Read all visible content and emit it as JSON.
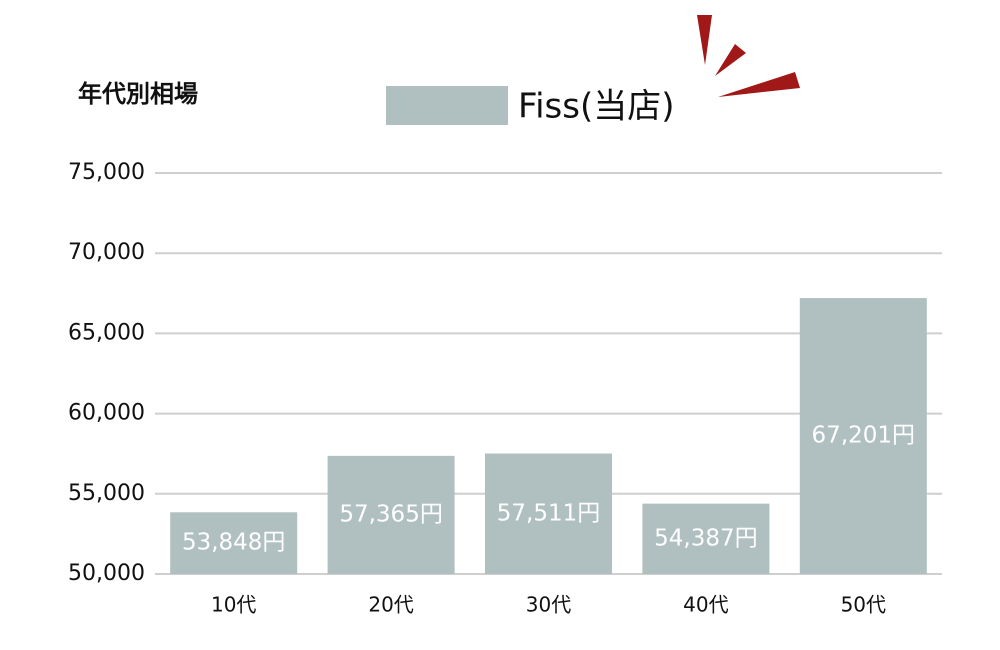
{
  "chart_data": {
    "type": "bar",
    "title": "年代別相場",
    "categories": [
      "10代",
      "20代",
      "30代",
      "40代",
      "50代"
    ],
    "series": [
      {
        "name": "Fiss(当店)",
        "color": "#b0bfc0",
        "values": [
          53848,
          57365,
          57511,
          54387,
          67201
        ],
        "value_labels": [
          "53,848円",
          "57,365円",
          "57,511円",
          "54,387円",
          "67,201円"
        ]
      }
    ],
    "ylim": [
      50000,
      75000
    ],
    "yticks": [
      {
        "value": 50000,
        "label": "50,000"
      },
      {
        "value": 55000,
        "label": "55,000"
      },
      {
        "value": 60000,
        "label": "60,000"
      },
      {
        "value": 65000,
        "label": "65,000"
      },
      {
        "value": 70000,
        "label": "70,000"
      },
      {
        "value": 75000,
        "label": "75,000"
      }
    ],
    "grid": true
  }
}
